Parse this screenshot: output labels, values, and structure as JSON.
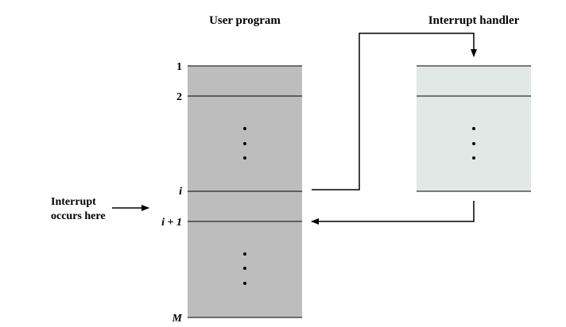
{
  "titles": {
    "user_program": "User program",
    "interrupt_handler": "Interrupt handler"
  },
  "rows": {
    "row_1": "1",
    "row_2": "2",
    "row_i": "i",
    "row_i_plus_1": "i + 1",
    "row_m": "M"
  },
  "annotation": {
    "line1": "Interrupt",
    "line2": "occurs here"
  },
  "colors": {
    "program_fill": "#bdbdbd",
    "handler_fill": "#e1e8e6",
    "line": "#000000"
  }
}
